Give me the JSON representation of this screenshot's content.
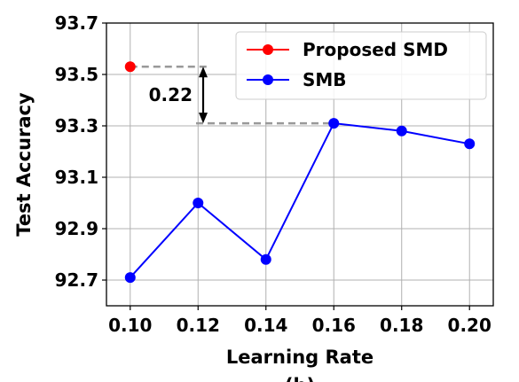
{
  "chart_data": {
    "type": "line",
    "xlabel": "Learning Rate",
    "ylabel": "Test Accuracy",
    "caption": "(b)",
    "x_ticks": [
      "0.10",
      "0.12",
      "0.14",
      "0.16",
      "0.18",
      "0.20"
    ],
    "y_ticks": [
      "92.7",
      "92.9",
      "93.1",
      "93.3",
      "93.5",
      "93.7"
    ],
    "xlim": [
      0.093,
      0.207
    ],
    "ylim": [
      92.6,
      93.7
    ],
    "grid": true,
    "legend_position": "top-right",
    "series": [
      {
        "name": "Proposed SMD",
        "color": "#ff0000",
        "x": [
          0.1
        ],
        "y": [
          93.53
        ]
      },
      {
        "name": "SMB",
        "color": "#0000ff",
        "x": [
          0.1,
          0.12,
          0.14,
          0.16,
          0.18,
          0.2
        ],
        "y": [
          92.71,
          93.0,
          92.78,
          93.31,
          93.28,
          93.23
        ]
      }
    ],
    "annotation": {
      "text": "0.22",
      "from": 93.31,
      "to": 93.53
    }
  }
}
